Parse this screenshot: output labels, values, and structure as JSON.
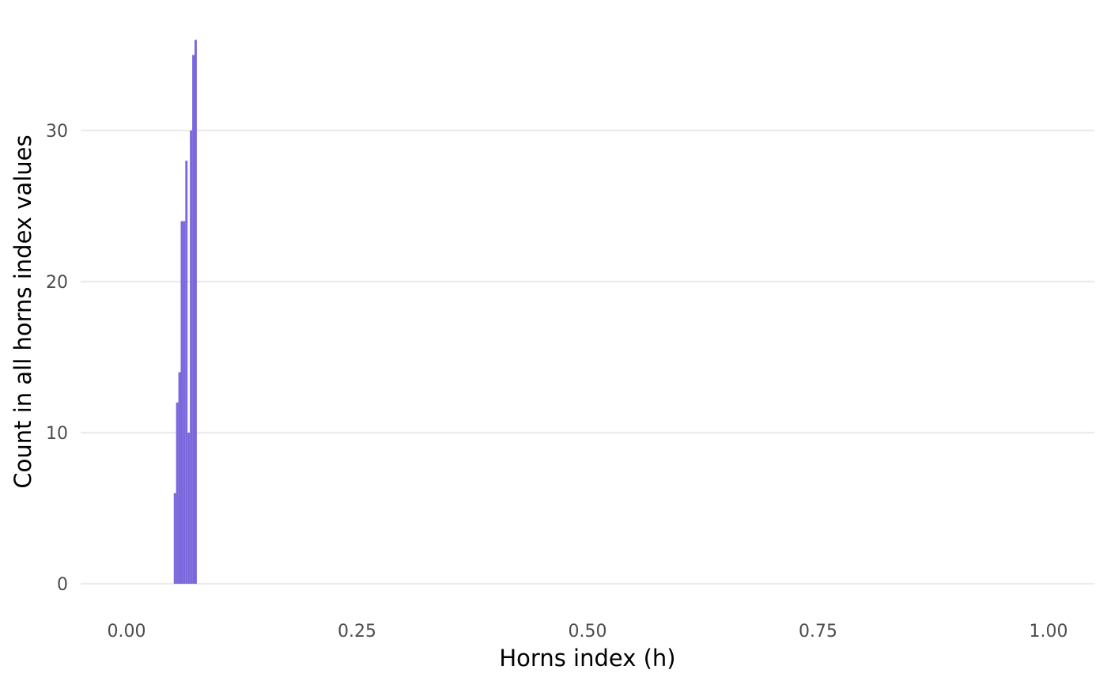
{
  "chart_data": {
    "type": "bar",
    "xlabel": "Horns index (h)",
    "ylabel": "Count in all horns index values",
    "xlim": [
      0,
      1
    ],
    "ylim": [
      0,
      36
    ],
    "x_ticks": [
      "0.00",
      "0.25",
      "0.50",
      "0.75",
      "1.00"
    ],
    "y_ticks": [
      "0",
      "10",
      "20",
      "30"
    ],
    "grid": true,
    "bar_color": "#7b68dd",
    "bin_width": 0.0025,
    "bins": [
      {
        "x": 0.0525,
        "value": 6
      },
      {
        "x": 0.055,
        "value": 12
      },
      {
        "x": 0.0575,
        "value": 14
      },
      {
        "x": 0.06,
        "value": 24
      },
      {
        "x": 0.0625,
        "value": 24
      },
      {
        "x": 0.065,
        "value": 28
      },
      {
        "x": 0.0675,
        "value": 10
      },
      {
        "x": 0.07,
        "value": 30
      },
      {
        "x": 0.0725,
        "value": 35
      },
      {
        "x": 0.075,
        "value": 36
      }
    ]
  }
}
